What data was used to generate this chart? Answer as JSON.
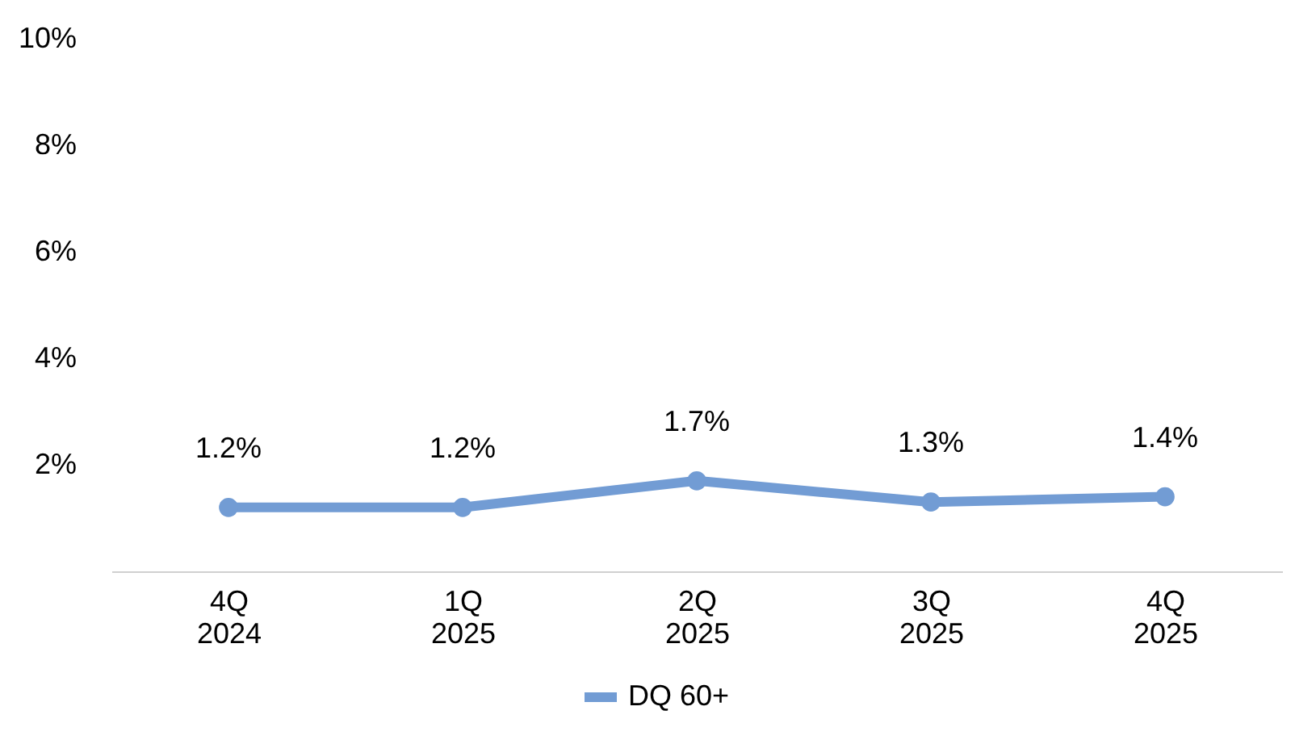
{
  "chart_data": {
    "type": "line",
    "categories": [
      "4Q\n2024",
      "1Q\n2025",
      "2Q\n2025",
      "3Q\n2025",
      "4Q\n2025"
    ],
    "series": [
      {
        "name": "DQ 60+",
        "color": "#729cd4",
        "values": [
          1.2,
          1.2,
          1.7,
          1.3,
          1.4
        ],
        "value_labels": [
          "1.2%",
          "1.2%",
          "1.7%",
          "1.3%",
          "1.4%"
        ]
      }
    ],
    "ylim": [
      0,
      10
    ],
    "yticks": [
      {
        "value": 0,
        "label": null
      },
      {
        "value": 2,
        "label": "2%"
      },
      {
        "value": 4,
        "label": "4%"
      },
      {
        "value": 6,
        "label": "6%"
      },
      {
        "value": 8,
        "label": "8%"
      },
      {
        "value": 10,
        "label": "10%"
      }
    ],
    "grid": false,
    "legend": "bottom",
    "marker": "circle",
    "line_style": "solid"
  }
}
